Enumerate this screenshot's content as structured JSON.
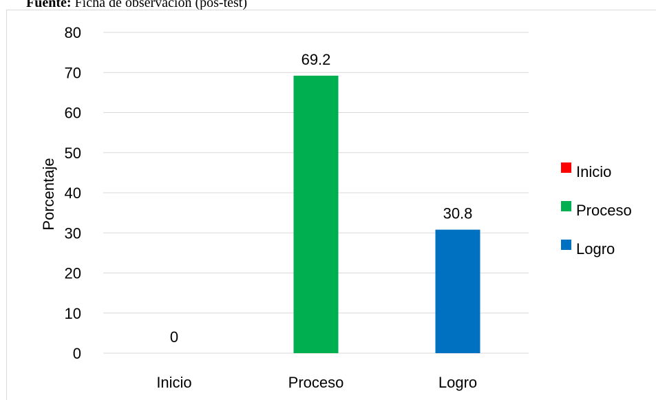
{
  "source": {
    "label": "Fuente:",
    "text": "Ficha de observación (pos-test)"
  },
  "chart_data": {
    "type": "bar",
    "categories": [
      "Inicio",
      "Proceso",
      "Logro"
    ],
    "values": [
      0,
      69.2,
      30.8
    ],
    "data_labels": [
      "0",
      "69.2",
      "30.8"
    ],
    "colors": [
      "#ff0000",
      "#00b050",
      "#0070c0"
    ],
    "title": "",
    "xlabel": "",
    "ylabel": "Porcentaje",
    "ylim": [
      0,
      80
    ],
    "yticks": [
      0,
      10,
      20,
      30,
      40,
      50,
      60,
      70,
      80
    ],
    "grid": true,
    "legend": {
      "position": "right",
      "entries": [
        "Inicio",
        "Proceso",
        "Logro"
      ]
    }
  }
}
